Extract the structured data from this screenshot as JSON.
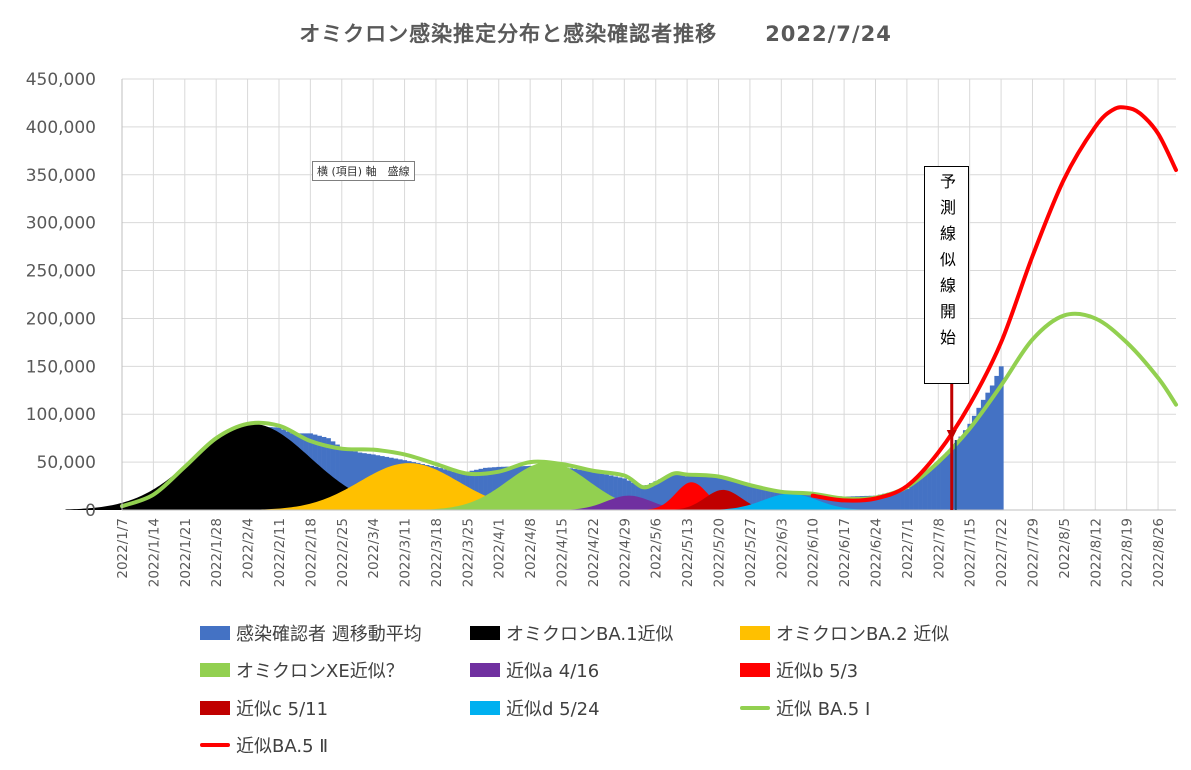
{
  "chart_data": {
    "type": "area",
    "title": "オミクロン感染推定分布と感染確認者推移",
    "title_date": "2022/7/24",
    "ylim": [
      0,
      450000
    ],
    "yticks": [
      "0",
      "50,000",
      "100,000",
      "150,000",
      "200,000",
      "250,000",
      "300,000",
      "350,000",
      "400,000",
      "450,000"
    ],
    "ytick_values": [
      0,
      50000,
      100000,
      150000,
      200000,
      250000,
      300000,
      350000,
      400000,
      450000
    ],
    "x_start": "2022/1/7",
    "x_end": "2022/8/30",
    "xticks": [
      "2022/1/7",
      "2022/1/14",
      "2022/1/21",
      "2022/1/28",
      "2022/2/4",
      "2022/2/11",
      "2022/2/18",
      "2022/2/25",
      "2022/3/4",
      "2022/3/11",
      "2022/3/18",
      "2022/3/25",
      "2022/4/1",
      "2022/4/8",
      "2022/4/15",
      "2022/4/22",
      "2022/4/29",
      "2022/5/6",
      "2022/5/13",
      "2022/5/20",
      "2022/5/27",
      "2022/6/3",
      "2022/6/10",
      "2022/6/17",
      "2022/6/24",
      "2022/7/1",
      "2022/7/8",
      "2022/7/15",
      "2022/7/22",
      "2022/7/29",
      "2022/8/5",
      "2022/8/12",
      "2022/8/19",
      "2022/8/26"
    ],
    "grid": true,
    "legend_position": "bottom",
    "series": [
      {
        "name": "感染確認者 週移動平均",
        "kind": "bar",
        "color": "#4472C4",
        "x": [
          "2022/1/7",
          "2022/1/14",
          "2022/1/21",
          "2022/1/28",
          "2022/2/4",
          "2022/2/11",
          "2022/2/14",
          "2022/2/18",
          "2022/2/22",
          "2022/2/25",
          "2022/3/1",
          "2022/3/4",
          "2022/3/11",
          "2022/3/18",
          "2022/3/22",
          "2022/3/25",
          "2022/3/29",
          "2022/4/1",
          "2022/4/8",
          "2022/4/15",
          "2022/4/22",
          "2022/4/29",
          "2022/5/3",
          "2022/5/6",
          "2022/5/10",
          "2022/5/13",
          "2022/5/20",
          "2022/5/27",
          "2022/6/3",
          "2022/6/10",
          "2022/6/17",
          "2022/6/24",
          "2022/7/1",
          "2022/7/8",
          "2022/7/12",
          "2022/7/15",
          "2022/7/18",
          "2022/7/20",
          "2022/7/22"
        ],
        "values": [
          5000,
          15000,
          40000,
          70000,
          88000,
          86000,
          80000,
          80000,
          75000,
          65000,
          60000,
          58000,
          52000,
          45000,
          40000,
          40000,
          44000,
          45000,
          46000,
          45000,
          40000,
          33000,
          24000,
          30000,
          38000,
          35000,
          35000,
          26000,
          18000,
          16000,
          14000,
          15000,
          22000,
          50000,
          70000,
          90000,
          115000,
          130000,
          150000
        ]
      },
      {
        "name": "オミクロンBA.1近似",
        "kind": "area",
        "color": "#000000",
        "center": "2022/2/5",
        "peak": 90000,
        "sigma_days": 13
      },
      {
        "name": "オミクロンBA.2 近似",
        "kind": "area",
        "color": "#FFC000",
        "center": "2022/3/12",
        "peak": 49000,
        "sigma_days": 11
      },
      {
        "name": "オミクロンXE近似？",
        "kind": "area",
        "color": "#92D050",
        "center": "2022/4/12",
        "peak": 50000,
        "sigma_days": 9
      },
      {
        "name": "近似a 4/16",
        "kind": "area",
        "color": "#7030A0",
        "center": "2022/4/30",
        "peak": 15000,
        "sigma_days": 5
      },
      {
        "name": "近似b 5/3",
        "kind": "area",
        "color": "#FF0000",
        "center": "2022/5/14",
        "peak": 29000,
        "sigma_days": 3.5
      },
      {
        "name": "近似c 5/11",
        "kind": "area",
        "color": "#C00000",
        "center": "2022/5/21",
        "peak": 21000,
        "sigma_days": 4
      },
      {
        "name": "近似d 5/24",
        "kind": "area",
        "color": "#00B0F0",
        "center": "2022/6/5",
        "peak": 17000,
        "sigma_days": 6
      },
      {
        "name": "近似 BA.5 Ⅰ",
        "kind": "line",
        "color": "#92D050",
        "x": [
          "2022/1/7",
          "2022/1/14",
          "2022/1/21",
          "2022/1/28",
          "2022/2/4",
          "2022/2/11",
          "2022/2/18",
          "2022/2/25",
          "2022/3/4",
          "2022/3/11",
          "2022/3/18",
          "2022/3/25",
          "2022/4/1",
          "2022/4/8",
          "2022/4/15",
          "2022/4/22",
          "2022/4/29",
          "2022/5/3",
          "2022/5/6",
          "2022/5/10",
          "2022/5/13",
          "2022/5/20",
          "2022/5/27",
          "2022/6/3",
          "2022/6/10",
          "2022/6/17",
          "2022/6/24",
          "2022/7/1",
          "2022/7/8",
          "2022/7/15",
          "2022/7/22",
          "2022/7/29",
          "2022/8/5",
          "2022/8/12",
          "2022/8/19",
          "2022/8/26",
          "2022/8/30"
        ],
        "values": [
          4000,
          16000,
          45000,
          75000,
          90000,
          88000,
          72000,
          64000,
          63000,
          58000,
          48000,
          38000,
          40000,
          50000,
          48000,
          41000,
          36000,
          24000,
          28000,
          38000,
          37000,
          35000,
          26000,
          19000,
          17000,
          12000,
          13000,
          24000,
          50000,
          85000,
          130000,
          178000,
          203000,
          200000,
          175000,
          138000,
          110000
        ]
      },
      {
        "name": "近似BA.5 Ⅱ",
        "kind": "line",
        "color": "#FF0000",
        "x": [
          "2022/6/10",
          "2022/6/17",
          "2022/6/24",
          "2022/7/1",
          "2022/7/8",
          "2022/7/15",
          "2022/7/22",
          "2022/7/29",
          "2022/8/5",
          "2022/8/12",
          "2022/8/16",
          "2022/8/19",
          "2022/8/22",
          "2022/8/26",
          "2022/8/30"
        ],
        "values": [
          15000,
          10000,
          12000,
          25000,
          60000,
          110000,
          175000,
          265000,
          345000,
          400000,
          418000,
          420000,
          414000,
          393000,
          355000
        ]
      }
    ],
    "annotation": {
      "text": "予測線似線開始",
      "x": "2022/7/11"
    },
    "marker_label": "横 (項目) 軸　盛線"
  }
}
